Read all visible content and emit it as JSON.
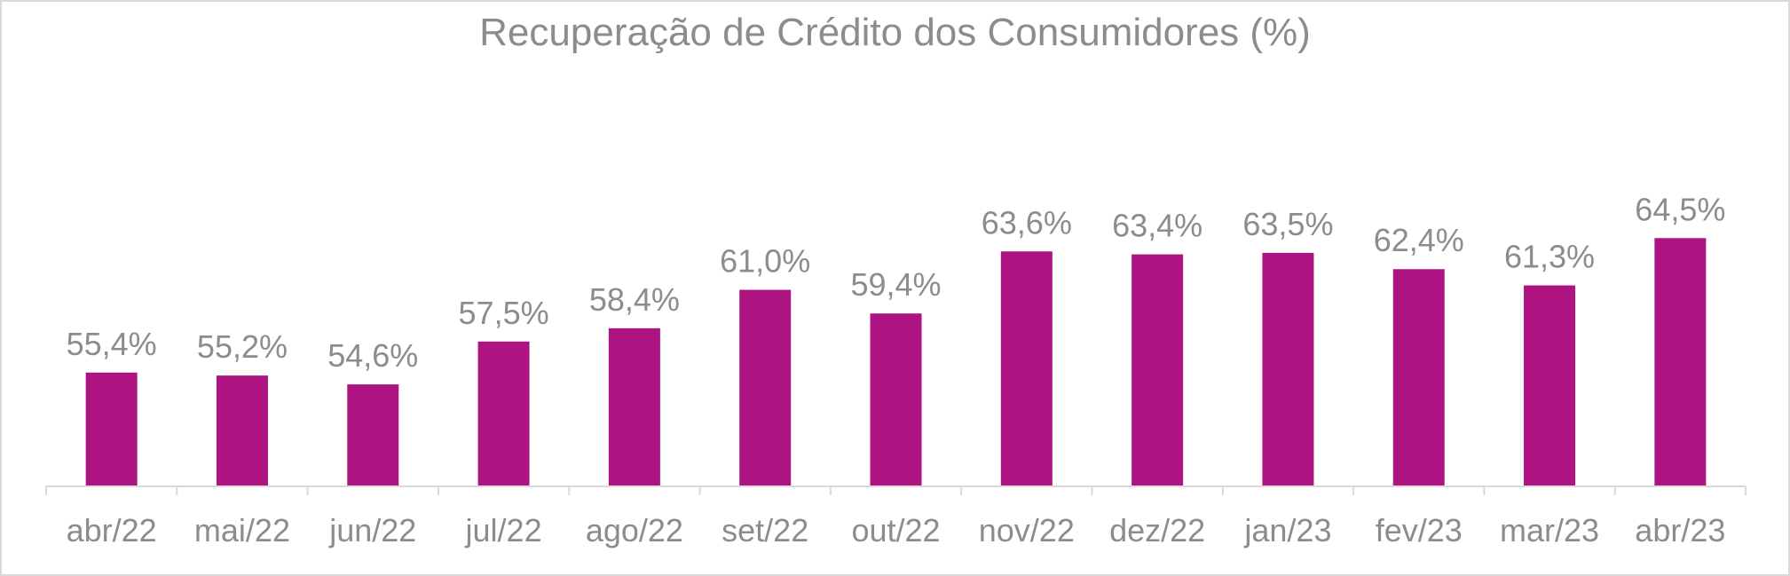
{
  "chart_data": {
    "type": "bar",
    "title": "Recuperação de Crédito dos Consumidores (%)",
    "xlabel": "",
    "ylabel": "",
    "categories": [
      "abr/22",
      "mai/22",
      "jun/22",
      "jul/22",
      "ago/22",
      "set/22",
      "out/22",
      "nov/22",
      "dez/22",
      "jan/23",
      "fev/23",
      "mar/23",
      "abr/23"
    ],
    "values": [
      55.4,
      55.2,
      54.6,
      57.5,
      58.4,
      61.0,
      59.4,
      63.6,
      63.4,
      63.5,
      62.4,
      61.3,
      64.5
    ],
    "data_labels": [
      "55,4%",
      "55,2%",
      "54,6%",
      "57,5%",
      "58,4%",
      "61,0%",
      "59,4%",
      "63,6%",
      "63,4%",
      "63,5%",
      "62,4%",
      "61,3%",
      "64,5%"
    ],
    "grid": false,
    "legend": "none",
    "colors": {
      "bar": "#ad1482",
      "text": "#8c8c8c",
      "axis": "#d9d9d9",
      "border": "#d9d9d9",
      "background": "#ffffff"
    }
  }
}
